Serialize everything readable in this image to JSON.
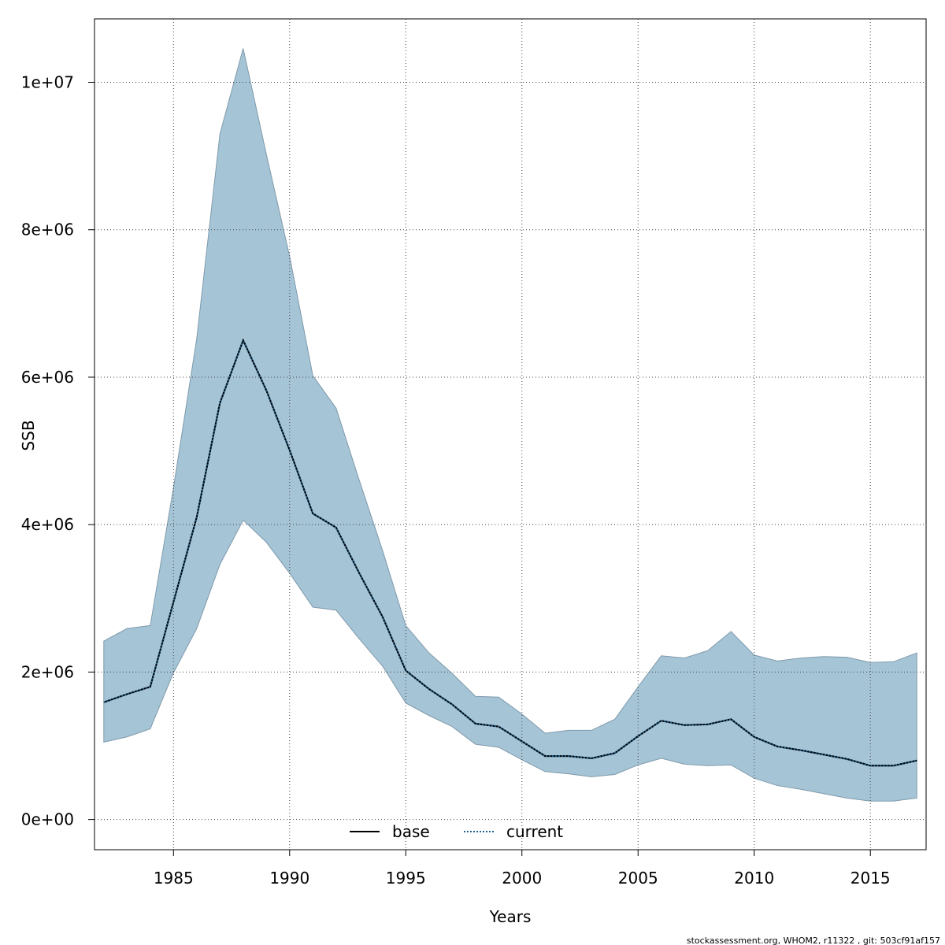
{
  "chart_data": {
    "type": "line",
    "xlabel": "Years",
    "ylabel": "SSB",
    "xlim": [
      1981.6,
      2017.4
    ],
    "ylim": [
      -410000,
      10860000
    ],
    "xticks": [
      1985,
      1990,
      1995,
      2000,
      2005,
      2010,
      2015
    ],
    "xtick_labels": [
      "1985",
      "1990",
      "1995",
      "2000",
      "2005",
      "2010",
      "2015"
    ],
    "yticks": [
      0,
      2000000,
      4000000,
      6000000,
      8000000,
      10000000
    ],
    "ytick_labels": [
      "0e+00",
      "2e+06",
      "4e+06",
      "6e+06",
      "8e+06",
      "1e+07"
    ],
    "grid": true,
    "legend": {
      "position": "bottom-center",
      "entries": [
        {
          "label": "base",
          "style": "solid",
          "color": "#000000"
        },
        {
          "label": "current",
          "style": "dotted",
          "color": "#1f5f8b"
        }
      ]
    },
    "x": [
      1982,
      1983,
      1984,
      1985,
      1986,
      1987,
      1988,
      1989,
      1990,
      1991,
      1992,
      1993,
      1994,
      1995,
      1996,
      1997,
      1998,
      1999,
      2000,
      2001,
      2002,
      2003,
      2004,
      2005,
      2006,
      2007,
      2008,
      2009,
      2010,
      2011,
      2012,
      2013,
      2014,
      2015,
      2016,
      2017
    ],
    "series": [
      {
        "name": "base",
        "style": "solid",
        "values": [
          1590000,
          1700000,
          1800000,
          2950000,
          4100000,
          5650000,
          6500000,
          5820000,
          5010000,
          4150000,
          3960000,
          3340000,
          2750000,
          2020000,
          1770000,
          1560000,
          1300000,
          1260000,
          1060000,
          860000,
          860000,
          830000,
          900000,
          1130000,
          1340000,
          1280000,
          1290000,
          1360000,
          1120000,
          990000,
          940000,
          880000,
          820000,
          730000,
          730000,
          800000
        ]
      },
      {
        "name": "current",
        "style": "dotted",
        "values": [
          1590000,
          1700000,
          1800000,
          2950000,
          4100000,
          5650000,
          6500000,
          5820000,
          5010000,
          4150000,
          3960000,
          3340000,
          2750000,
          2020000,
          1770000,
          1560000,
          1300000,
          1260000,
          1060000,
          860000,
          860000,
          830000,
          900000,
          1130000,
          1340000,
          1280000,
          1290000,
          1360000,
          1120000,
          990000,
          940000,
          880000,
          820000,
          730000,
          730000,
          800000
        ]
      }
    ],
    "confidence_band": {
      "upper": [
        2420000,
        2590000,
        2630000,
        4500000,
        6520000,
        9300000,
        10460000,
        9020000,
        7640000,
        6020000,
        5580000,
        4600000,
        3650000,
        2630000,
        2260000,
        1980000,
        1670000,
        1660000,
        1430000,
        1170000,
        1210000,
        1210000,
        1360000,
        1800000,
        2220000,
        2190000,
        2290000,
        2550000,
        2230000,
        2150000,
        2190000,
        2210000,
        2200000,
        2130000,
        2140000,
        2260000
      ],
      "lower": [
        1050000,
        1120000,
        1230000,
        1990000,
        2590000,
        3460000,
        4060000,
        3760000,
        3340000,
        2880000,
        2840000,
        2450000,
        2080000,
        1580000,
        1410000,
        1260000,
        1020000,
        980000,
        810000,
        650000,
        620000,
        580000,
        610000,
        740000,
        830000,
        750000,
        730000,
        740000,
        560000,
        460000,
        410000,
        350000,
        290000,
        250000,
        250000,
        290000
      ],
      "fill": "#a5c4d6",
      "stroke": "#7f9aab"
    },
    "colors": {
      "grid": "#444444",
      "axis": "#000000",
      "current_line": "#1f5f8b"
    }
  },
  "footer": {
    "text": "stockassessment.org, WHOM2, r11322 , git: 503cf91af157"
  }
}
